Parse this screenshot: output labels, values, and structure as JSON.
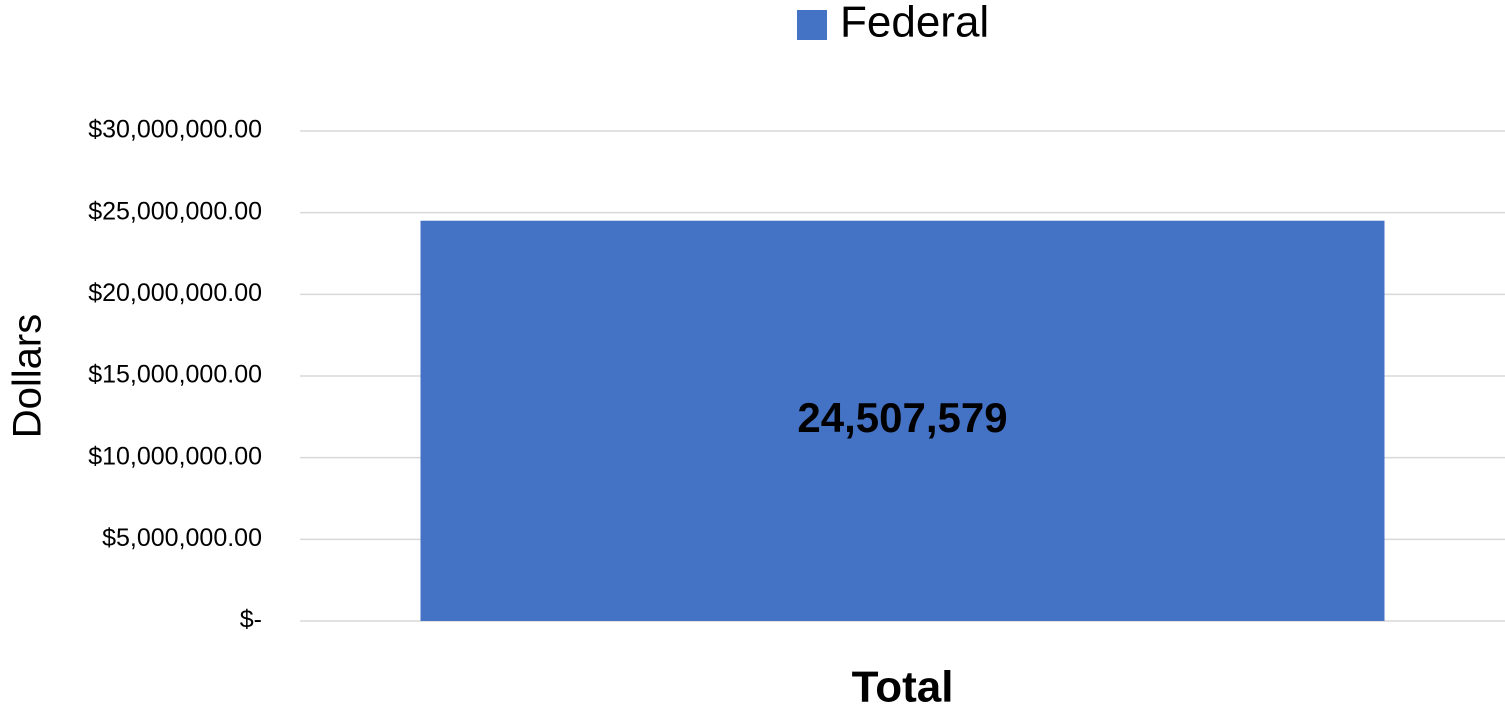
{
  "chart_data": {
    "type": "bar",
    "categories": [
      "Total"
    ],
    "series": [
      {
        "name": "Federal",
        "color": "#4472c4",
        "values": [
          24507579
        ],
        "value_labels": [
          "24,507,579"
        ]
      }
    ],
    "y_label": "Dollars",
    "ylim": [
      0,
      30000000
    ],
    "yticks": [
      {
        "value": 0,
        "label": "$-"
      },
      {
        "value": 5000000,
        "label": "$5,000,000.00"
      },
      {
        "value": 10000000,
        "label": "$10,000,000.00"
      },
      {
        "value": 15000000,
        "label": "$15,000,000.00"
      },
      {
        "value": 20000000,
        "label": "$20,000,000.00"
      },
      {
        "value": 25000000,
        "label": "$25,000,000.00"
      },
      {
        "value": 30000000,
        "label": "$30,000,000.00"
      }
    ],
    "grid": true,
    "legend": "top"
  }
}
